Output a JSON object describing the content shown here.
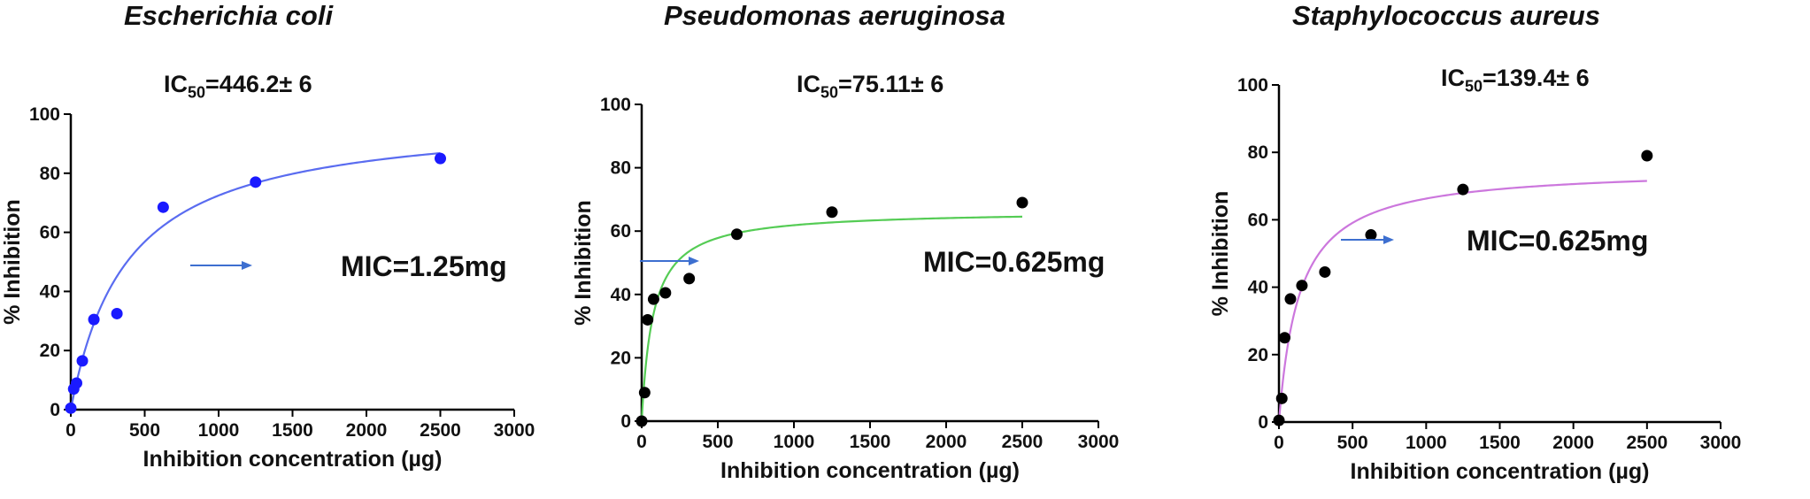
{
  "chart_data": [
    {
      "type": "scatter",
      "title": "Escherichia coli",
      "ic50_label": {
        "prefix": "IC",
        "sub": "50",
        "value": "=446.2± 6"
      },
      "mic_label": "MIC=1.25mg",
      "xlabel": "Inhibition concentration (µg)",
      "ylabel": "% Inhibition",
      "xlim": [
        0,
        3000
      ],
      "ylim": [
        0,
        100
      ],
      "xticks": [
        0,
        500,
        1000,
        1500,
        2000,
        2500,
        3000
      ],
      "yticks": [
        0,
        20,
        40,
        60,
        80,
        100
      ],
      "grid": false,
      "point_color": "#1a1aff",
      "curve_color": "#5a6cf0",
      "points": [
        {
          "x": 0,
          "y": 0.5
        },
        {
          "x": 19.5,
          "y": 7
        },
        {
          "x": 39,
          "y": 9
        },
        {
          "x": 78,
          "y": 16.5
        },
        {
          "x": 156,
          "y": 30.5
        },
        {
          "x": 312,
          "y": 32.5
        },
        {
          "x": 625,
          "y": 68.5
        },
        {
          "x": 1250,
          "y": 77
        },
        {
          "x": 2500,
          "y": 85
        }
      ],
      "curve": {
        "model": "hyperbolic",
        "top": 100,
        "ec50": 380,
        "x_max": 2500
      }
    },
    {
      "type": "scatter",
      "title": "Pseudomonas aeruginosa",
      "ic50_label": {
        "prefix": "IC",
        "sub": "50",
        "value": "=75.11± 6"
      },
      "mic_label": "MIC=0.625mg",
      "xlabel": "Inhibition concentration (µg)",
      "ylabel": "% Inhibition",
      "xlim": [
        0,
        3000
      ],
      "ylim": [
        0,
        100
      ],
      "xticks": [
        0,
        500,
        1000,
        1500,
        2000,
        2500,
        3000
      ],
      "yticks": [
        0,
        20,
        40,
        60,
        80,
        100
      ],
      "grid": false,
      "point_color": "#000000",
      "curve_color": "#55cc55",
      "points": [
        {
          "x": 0,
          "y": 0
        },
        {
          "x": 19.5,
          "y": 9
        },
        {
          "x": 39,
          "y": 32
        },
        {
          "x": 78,
          "y": 38.5
        },
        {
          "x": 156,
          "y": 40.5
        },
        {
          "x": 312,
          "y": 45
        },
        {
          "x": 625,
          "y": 59
        },
        {
          "x": 1250,
          "y": 66
        },
        {
          "x": 2500,
          "y": 69
        }
      ],
      "curve": {
        "model": "hyperbolic",
        "top": 66.5,
        "ec50": 75,
        "x_max": 2500
      }
    },
    {
      "type": "scatter",
      "title": "Staphylococcus aureus",
      "ic50_label": {
        "prefix": "IC",
        "sub": "50",
        "value": "=139.4± 6"
      },
      "mic_label": "MIC=0.625mg",
      "xlabel": "Inhibition concentration (µg)",
      "ylabel": "% Inhibition",
      "xlim": [
        0,
        3000
      ],
      "ylim": [
        0,
        100
      ],
      "xticks": [
        0,
        500,
        1000,
        1500,
        2000,
        2500,
        3000
      ],
      "yticks": [
        0,
        20,
        40,
        60,
        80,
        100
      ],
      "grid": false,
      "point_color": "#000000",
      "curve_color": "#cc77dd",
      "points": [
        {
          "x": 0,
          "y": 0.5
        },
        {
          "x": 19.5,
          "y": 7
        },
        {
          "x": 39,
          "y": 25
        },
        {
          "x": 78,
          "y": 36.5
        },
        {
          "x": 156,
          "y": 40.5
        },
        {
          "x": 312,
          "y": 44.5
        },
        {
          "x": 625,
          "y": 55.5
        },
        {
          "x": 1250,
          "y": 69
        },
        {
          "x": 2500,
          "y": 79
        }
      ],
      "curve": {
        "model": "hyperbolic",
        "top": 75.5,
        "ec50": 139,
        "x_max": 2500
      }
    }
  ]
}
